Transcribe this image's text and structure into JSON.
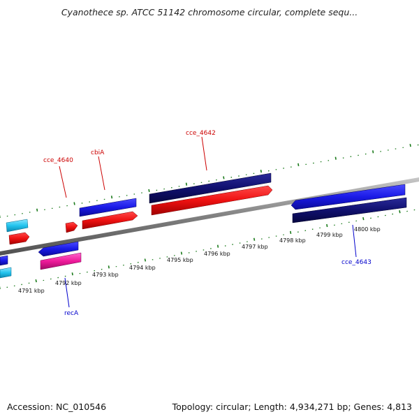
{
  "title": "Cyanothece sp. ATCC 51142 chromosome circular, complete sequ...",
  "footer": {
    "accession": "Accession: NC_010546",
    "summary": "Topology: circular; Length: 4,934,271 bp; Genes: 4,813"
  },
  "colors": {
    "forward_label": "#cc0000",
    "reverse_label": "#0000cc",
    "tick": "#1a7a1a",
    "backbone": "#808080"
  },
  "kbp_labels": [
    "4791 kbp",
    "4792 kbp",
    "4793 kbp",
    "4794 kbp",
    "4795 kbp",
    "4796 kbp",
    "4797 kbp",
    "4798 kbp",
    "4799 kbp",
    "4800 kbp"
  ],
  "gene_labels": {
    "cce_4640": "cce_4640",
    "cbiA": "cbiA",
    "cce_4642": "cce_4642",
    "recA": "recA",
    "cce_4643": "cce_4643"
  }
}
